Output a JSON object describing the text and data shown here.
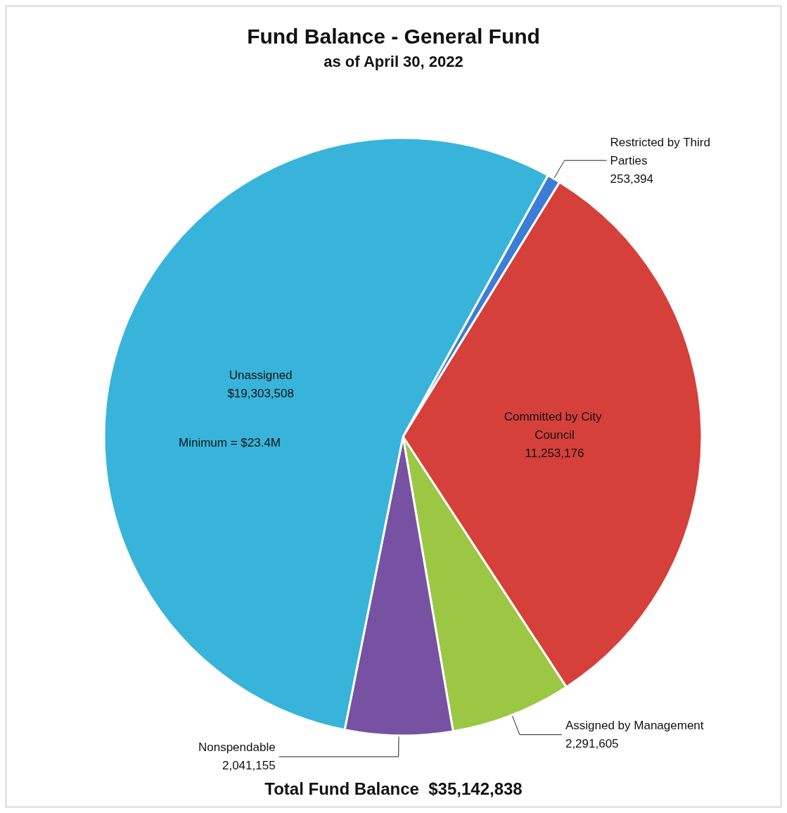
{
  "chart_data": {
    "type": "pie",
    "title": "Fund Balance - General Fund",
    "subtitle": "as of April 30, 2022",
    "categories": [
      "Restricted by Third Parties",
      "Committed by City Council",
      "Assigned by Management",
      "Nonspendable",
      "Unassigned"
    ],
    "values": [
      253394,
      11253176,
      2291605,
      2041155,
      19303508
    ],
    "value_labels": [
      "253,394",
      "11,253,176",
      "2,291,605",
      "2,041,155",
      "$19,303,508"
    ],
    "colors": [
      "#3a7fd5",
      "#d5403a",
      "#9cc744",
      "#7752a3",
      "#38b4da"
    ],
    "legend": false,
    "annotations": [
      "Minimum = $23.4M",
      "Total Fund Balance  $35,142,838"
    ]
  }
}
